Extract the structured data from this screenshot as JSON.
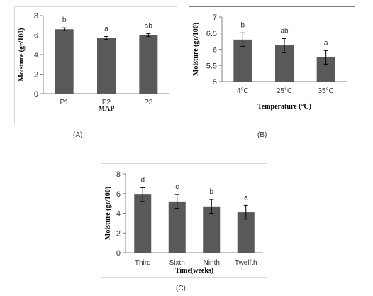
{
  "panel_labels": [
    "(A)",
    "(B)",
    "(C)"
  ],
  "colors": {
    "bar": "#595959",
    "axis": "#858585",
    "text": "#333333",
    "error": "#000000"
  },
  "chart_data": [
    {
      "type": "bar",
      "panel": "A",
      "categories": [
        "P1",
        "P2",
        "P3"
      ],
      "values": [
        6.6,
        5.7,
        6.0
      ],
      "errors": [
        0.15,
        0.15,
        0.15
      ],
      "letters": [
        "b",
        "a",
        "ab"
      ],
      "xlabel": "MAP",
      "ylabel": "Moisture (gr/100)",
      "ylim": [
        0,
        8
      ],
      "yticks": [
        "0",
        "2",
        "4",
        "6",
        "8"
      ],
      "ytick_values": [
        0,
        2,
        4,
        6,
        8
      ],
      "grid": false
    },
    {
      "type": "bar",
      "panel": "B",
      "categories": [
        "4°C",
        "25°C",
        "35°C"
      ],
      "values": [
        6.3,
        6.12,
        5.75
      ],
      "errors": [
        0.21,
        0.21,
        0.21
      ],
      "letters": [
        "b",
        "ab",
        "a"
      ],
      "xlabel": "Temperature (°C)",
      "ylabel": "Moisture (gr/100)",
      "ylim": [
        5,
        7
      ],
      "yticks": [
        "5",
        "5.5",
        "6",
        "6.5",
        "7"
      ],
      "ytick_values": [
        5,
        5.5,
        6,
        6.5,
        7
      ],
      "grid": false
    },
    {
      "type": "bar",
      "panel": "C",
      "categories": [
        "Third",
        "Sixth",
        "Ninth",
        "Twelfth"
      ],
      "values": [
        5.9,
        5.2,
        4.7,
        4.1
      ],
      "errors": [
        0.7,
        0.7,
        0.7,
        0.7
      ],
      "letters": [
        "d",
        "c",
        "b",
        "a"
      ],
      "xlabel": "Time(weeks)",
      "ylabel": "Moisture (gr/100)",
      "ylim": [
        0,
        8
      ],
      "yticks": [
        "0",
        "2",
        "4",
        "6",
        "8"
      ],
      "ytick_values": [
        0,
        2,
        4,
        6,
        8
      ],
      "grid": false
    }
  ]
}
